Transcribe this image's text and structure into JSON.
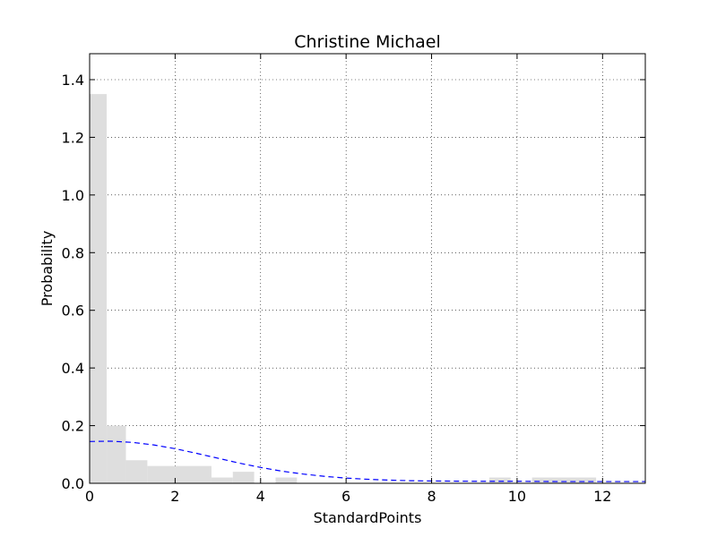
{
  "chart_data": {
    "type": "bar",
    "title": "Christine Michael",
    "xlabel": "StandardPoints",
    "ylabel": "Probability",
    "xlim": [
      0,
      13
    ],
    "ylim": [
      0,
      1.49
    ],
    "xticks": [
      0,
      2,
      4,
      6,
      8,
      10,
      12
    ],
    "yticks": [
      0.0,
      0.2,
      0.4,
      0.6,
      0.8,
      1.0,
      1.2,
      1.4
    ],
    "xtick_labels": [
      "0",
      "2",
      "4",
      "6",
      "8",
      "10",
      "12"
    ],
    "ytick_labels": [
      "0.0",
      "0.2",
      "0.4",
      "0.6",
      "0.8",
      "1.0",
      "1.2",
      "1.4"
    ],
    "grid": true,
    "histogram": {
      "color": "#dedede",
      "bins": [
        {
          "x0": 0.0,
          "x1": 0.4,
          "value": 1.35
        },
        {
          "x0": 0.4,
          "x1": 0.85,
          "value": 0.2
        },
        {
          "x0": 0.85,
          "x1": 1.35,
          "value": 0.08
        },
        {
          "x0": 1.35,
          "x1": 2.85,
          "value": 0.06
        },
        {
          "x0": 2.85,
          "x1": 3.35,
          "value": 0.02
        },
        {
          "x0": 3.35,
          "x1": 3.85,
          "value": 0.04
        },
        {
          "x0": 4.35,
          "x1": 4.85,
          "value": 0.02
        },
        {
          "x0": 9.35,
          "x1": 9.85,
          "value": 0.02
        },
        {
          "x0": 10.35,
          "x1": 11.85,
          "value": 0.02
        }
      ]
    },
    "curve": {
      "style": "dashed",
      "color": "#0000ff",
      "x": [
        0,
        0.5,
        1,
        1.5,
        2,
        2.5,
        3,
        3.5,
        4,
        4.5,
        5,
        5.5,
        6,
        6.5,
        7,
        7.5,
        8,
        9,
        10,
        11,
        12,
        13
      ],
      "y": [
        0.145,
        0.146,
        0.142,
        0.133,
        0.12,
        0.104,
        0.087,
        0.07,
        0.055,
        0.042,
        0.032,
        0.024,
        0.018,
        0.014,
        0.011,
        0.009,
        0.008,
        0.007,
        0.007,
        0.006,
        0.006,
        0.006
      ]
    }
  }
}
